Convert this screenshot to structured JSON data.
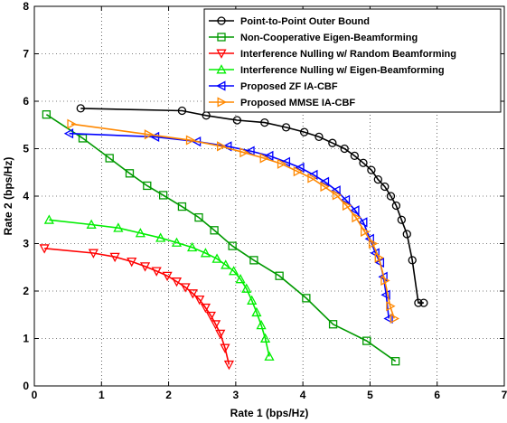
{
  "chart_data": {
    "type": "line",
    "xlabel": "Rate 1 (bps/Hz)",
    "ylabel": "Rate 2 (bps/Hz)",
    "xlim": [
      0,
      7
    ],
    "ylim": [
      0,
      8
    ],
    "xticks": [
      "0",
      "1",
      "2",
      "3",
      "4",
      "5",
      "6",
      "7"
    ],
    "yticks": [
      "0",
      "1",
      "2",
      "3",
      "4",
      "5",
      "6",
      "7",
      "8"
    ],
    "grid": "dotted",
    "legend_position": "top-right",
    "series": [
      {
        "name": "Point-to-Point Outer Bound",
        "color": "#000000",
        "marker": "circle",
        "x": [
          0.69,
          2.2,
          2.56,
          3.02,
          3.43,
          3.75,
          4.02,
          4.24,
          4.44,
          4.62,
          4.77,
          4.9,
          5.02,
          5.12,
          5.22,
          5.31,
          5.39,
          5.47,
          5.55,
          5.63,
          5.72,
          5.8
        ],
        "y": [
          5.85,
          5.8,
          5.7,
          5.6,
          5.55,
          5.45,
          5.35,
          5.25,
          5.12,
          5.0,
          4.85,
          4.7,
          4.55,
          4.35,
          4.2,
          4.0,
          3.8,
          3.5,
          3.2,
          2.65,
          1.75,
          1.75
        ]
      },
      {
        "name": "Non-Cooperative Eigen-Beamforming",
        "color": "#009900",
        "marker": "square",
        "x": [
          0.18,
          0.72,
          1.12,
          1.42,
          1.68,
          1.92,
          2.2,
          2.45,
          2.68,
          2.95,
          3.27,
          3.65,
          4.05,
          4.45,
          4.95,
          5.38
        ],
        "y": [
          5.72,
          5.22,
          4.8,
          4.48,
          4.22,
          4.02,
          3.78,
          3.55,
          3.28,
          2.95,
          2.65,
          2.32,
          1.85,
          1.3,
          0.95,
          0.52
        ]
      },
      {
        "name": "Interference Nulling w/ Random Beamforming",
        "color": "#ff0000",
        "marker": "triangle-down",
        "x": [
          0.15,
          0.88,
          1.2,
          1.45,
          1.65,
          1.82,
          1.98,
          2.12,
          2.25,
          2.36,
          2.46,
          2.55,
          2.63,
          2.7,
          2.77,
          2.84,
          2.9
        ],
        "y": [
          2.9,
          2.8,
          2.72,
          2.62,
          2.52,
          2.42,
          2.32,
          2.2,
          2.08,
          1.95,
          1.82,
          1.65,
          1.48,
          1.3,
          1.1,
          0.8,
          0.45
        ]
      },
      {
        "name": "Interference Nulling w/ Eigen-Beamforming",
        "color": "#00ee00",
        "marker": "triangle-up",
        "x": [
          0.22,
          0.85,
          1.25,
          1.58,
          1.88,
          2.12,
          2.35,
          2.55,
          2.72,
          2.85,
          2.97,
          3.07,
          3.16,
          3.24,
          3.31,
          3.38,
          3.44,
          3.5
        ],
        "y": [
          3.5,
          3.4,
          3.33,
          3.22,
          3.12,
          3.02,
          2.92,
          2.8,
          2.68,
          2.55,
          2.42,
          2.25,
          2.05,
          1.8,
          1.55,
          1.28,
          1.0,
          0.62
        ]
      },
      {
        "name": "Proposed ZF IA-CBF",
        "color": "#0000ff",
        "marker": "triangle-left",
        "x": [
          0.52,
          1.8,
          2.42,
          2.88,
          3.22,
          3.5,
          3.75,
          3.96,
          4.16,
          4.33,
          4.5,
          4.64,
          4.78,
          4.9,
          5.0,
          5.08,
          5.15,
          5.2,
          5.24,
          5.28
        ],
        "y": [
          5.32,
          5.25,
          5.15,
          5.05,
          4.95,
          4.85,
          4.72,
          4.6,
          4.45,
          4.3,
          4.12,
          3.92,
          3.7,
          3.45,
          3.1,
          2.8,
          2.6,
          2.3,
          1.92,
          1.42
        ]
      },
      {
        "name": "Proposed MMSE IA-CBF",
        "color": "#ff8800",
        "marker": "triangle-right",
        "x": [
          0.55,
          1.7,
          2.32,
          2.78,
          3.12,
          3.42,
          3.68,
          3.92,
          4.13,
          4.32,
          4.5,
          4.65,
          4.79,
          4.92,
          5.04,
          5.13,
          5.22,
          5.3,
          5.36
        ],
        "y": [
          5.52,
          5.3,
          5.18,
          5.05,
          4.92,
          4.8,
          4.68,
          4.52,
          4.38,
          4.2,
          4.02,
          3.8,
          3.55,
          3.25,
          3.0,
          2.7,
          2.22,
          1.68,
          1.42
        ]
      }
    ]
  }
}
